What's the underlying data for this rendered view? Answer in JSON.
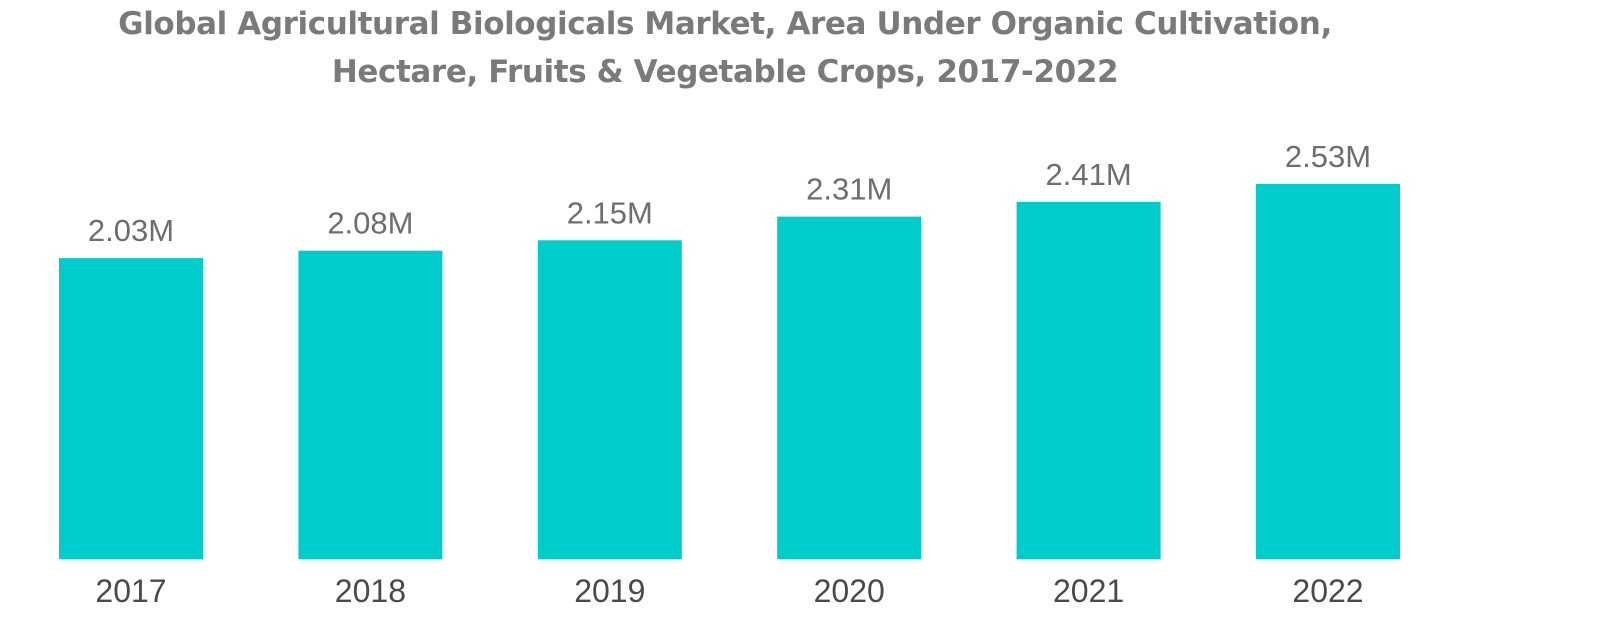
{
  "chart_data": {
    "type": "bar",
    "title": "Global Agricultural Biologicals Market, Area Under Organic Cultivation, Hectare, Fruits & Vegetable Crops, 2017-2022",
    "title_lines": [
      "Global Agricultural Biologicals Market, Area Under Organic Cultivation,",
      "Hectare, Fruits & Vegetable Crops, 2017-2022"
    ],
    "categories": [
      "2017",
      "2018",
      "2019",
      "2020",
      "2021",
      "2022"
    ],
    "values": [
      2.03,
      2.08,
      2.15,
      2.31,
      2.41,
      2.53
    ],
    "data_labels": [
      "2.03M",
      "2.08M",
      "2.15M",
      "2.31M",
      "2.41M",
      "2.53M"
    ],
    "unit": "M",
    "xlabel": "",
    "ylabel": "",
    "ylim": [
      0,
      2.53
    ],
    "grid": false,
    "legend": "none",
    "bar_color": "#00cccc"
  }
}
